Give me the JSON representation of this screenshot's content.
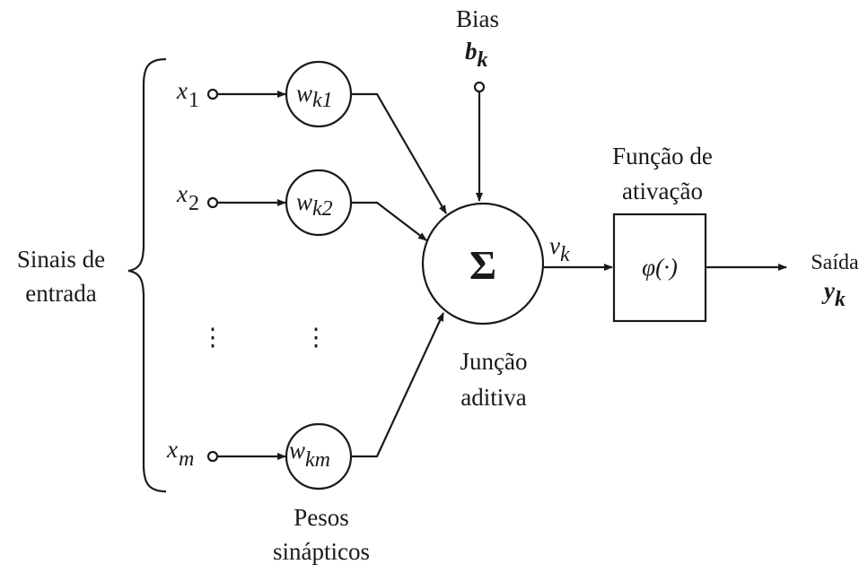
{
  "inputs": {
    "group_label_line1": "Sinais de",
    "group_label_line2": "entrada",
    "x1": {
      "base": "x",
      "sub": "1"
    },
    "x2": {
      "base": "x",
      "sub": "2"
    },
    "xm": {
      "base": "x",
      "sub": "m"
    },
    "ellipsis": "⋮"
  },
  "weights": {
    "w1": {
      "base": "w",
      "sub": "k1"
    },
    "w2": {
      "base": "w",
      "sub": "k2"
    },
    "wm": {
      "base": "w",
      "sub": "km"
    },
    "ellipsis": "⋮",
    "label_line1": "Pesos",
    "label_line2": "sinápticos"
  },
  "bias": {
    "title": "Bias",
    "symbol": {
      "base": "b",
      "sub": "k"
    }
  },
  "summing": {
    "symbol": "Σ",
    "label_line1": "Junção",
    "label_line2": "aditiva"
  },
  "induced_field": {
    "base": "v",
    "sub": "k"
  },
  "activation": {
    "label_line1": "Função de",
    "label_line2": "ativação",
    "symbol": "φ(·)"
  },
  "output": {
    "label": "Saída",
    "symbol": {
      "base": "y",
      "sub": "k"
    }
  }
}
